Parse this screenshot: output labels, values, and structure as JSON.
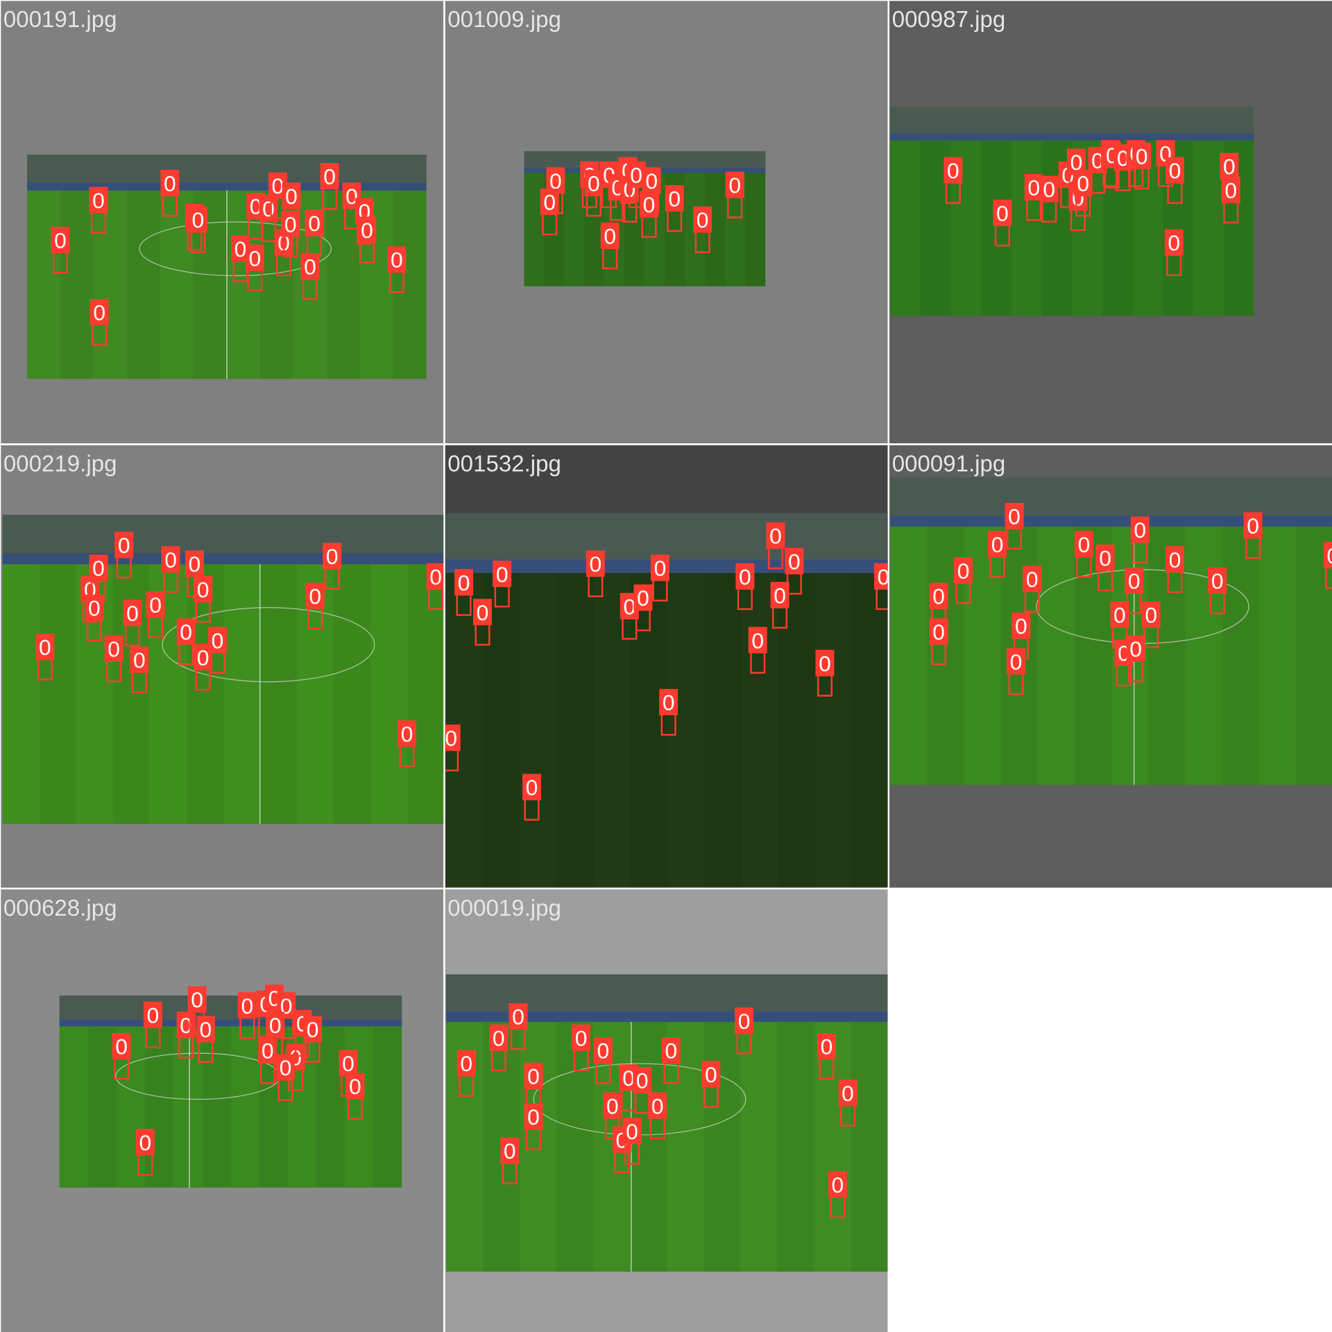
{
  "tiles": [
    {
      "name": "000191.jpg",
      "boxes": [
        "0",
        "0",
        "0",
        "0",
        "0",
        "0",
        "0",
        "0",
        "0",
        "0",
        "0",
        "0",
        "0",
        "0",
        "0",
        "0",
        "0",
        "0",
        "0",
        "0",
        "0"
      ]
    },
    {
      "name": "001009.jpg",
      "boxes": [
        "0",
        "0",
        "0",
        "0",
        "0",
        "0",
        "0",
        "0",
        "0",
        "0",
        "0",
        "0",
        "0",
        "0",
        "0"
      ]
    },
    {
      "name": "000987.jpg",
      "boxes": [
        "0",
        "0",
        "0",
        "0",
        "0",
        "0",
        "0",
        "0",
        "0",
        "0",
        "0",
        "0",
        "0",
        "0",
        "0",
        "0",
        "0",
        "0",
        "0"
      ]
    },
    {
      "name": "000219.jpg",
      "boxes": [
        "0",
        "0",
        "0",
        "0",
        "0",
        "0",
        "0",
        "0",
        "0",
        "0",
        "0",
        "0",
        "0",
        "0",
        "0",
        "0",
        "0",
        "0",
        "0"
      ]
    },
    {
      "name": "001532.jpg",
      "boxes": [
        "0",
        "0",
        "0",
        "0",
        "0",
        "0",
        "0",
        "0",
        "0",
        "0",
        "0",
        "0",
        "0",
        "0",
        "0",
        "0",
        "0"
      ]
    },
    {
      "name": "000091.jpg",
      "boxes": [
        "0",
        "0",
        "0",
        "0",
        "0",
        "0",
        "0",
        "0",
        "0",
        "0",
        "0",
        "0",
        "0",
        "0",
        "0",
        "0",
        "0",
        "0",
        "0",
        "0"
      ]
    },
    {
      "name": "000628.jpg",
      "boxes": [
        "0",
        "0",
        "0",
        "0",
        "0",
        "0",
        "0",
        "0",
        "0",
        "0",
        "0",
        "0",
        "0",
        "0",
        "0",
        "0",
        "0",
        "0"
      ]
    },
    {
      "name": "000019.jpg",
      "boxes": [
        "0",
        "0",
        "0",
        "0",
        "0",
        "0",
        "0",
        "0",
        "0",
        "0",
        "0",
        "0",
        "0",
        "0",
        "0",
        "0",
        "0",
        "0",
        "0",
        "0"
      ]
    }
  ]
}
